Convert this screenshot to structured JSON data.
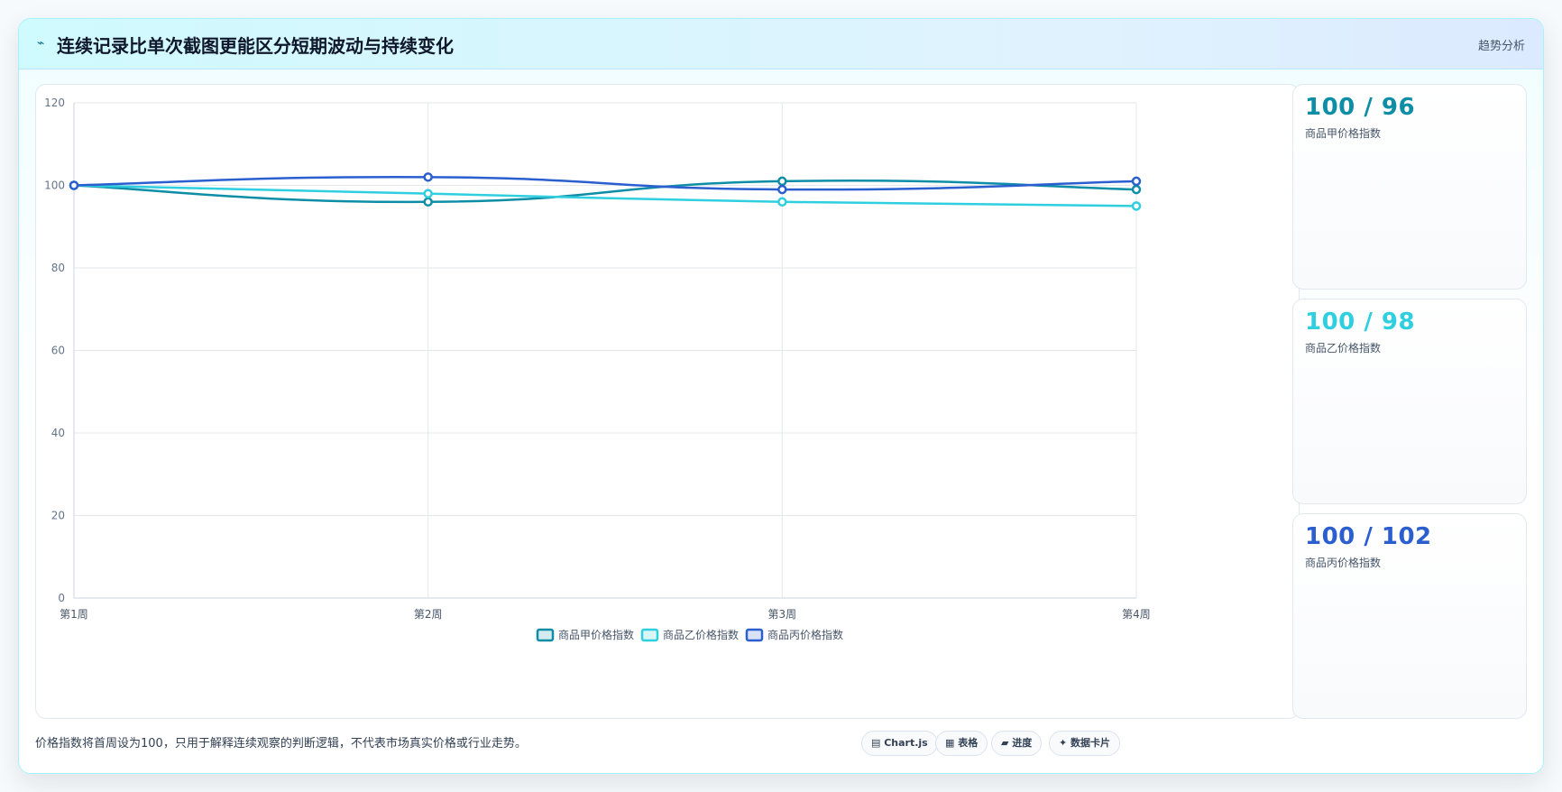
{
  "header": {
    "icon": "pulse-icon",
    "title": "连续记录比单次截图更能区分短期波动与持续变化",
    "tag": "趋势分析"
  },
  "colors": {
    "series_a": "#0e8ea6",
    "series_b": "#2fcfe0",
    "series_c": "#2b5fd0"
  },
  "chart_data": {
    "type": "line",
    "categories": [
      "第1周",
      "第2周",
      "第3周",
      "第4周"
    ],
    "series": [
      {
        "name": "商品甲价格指数",
        "values": [
          100,
          96,
          101,
          99
        ]
      },
      {
        "name": "商品乙价格指数",
        "values": [
          100,
          98,
          96,
          95
        ]
      },
      {
        "name": "商品丙价格指数",
        "values": [
          100,
          102,
          99,
          101
        ]
      }
    ],
    "ylim": [
      0,
      120
    ],
    "yticks": [
      "0",
      "20",
      "40",
      "60",
      "80",
      "100",
      "120"
    ],
    "grid": true,
    "legend": "bottom"
  },
  "stats": [
    {
      "value": "100 / 96",
      "label": "商品甲价格指数"
    },
    {
      "value": "100 / 98",
      "label": "商品乙价格指数"
    },
    {
      "value": "100 / 102",
      "label": "商品丙价格指数"
    }
  ],
  "footer": {
    "note": "价格指数将首周设为100，只用于解释连续观察的判断逻辑，不代表市场真实价格或行业走势。",
    "pills": [
      "▤ Chart.js",
      "▦ 表格",
      "▰ 进度",
      "✦ 数据卡片"
    ]
  }
}
